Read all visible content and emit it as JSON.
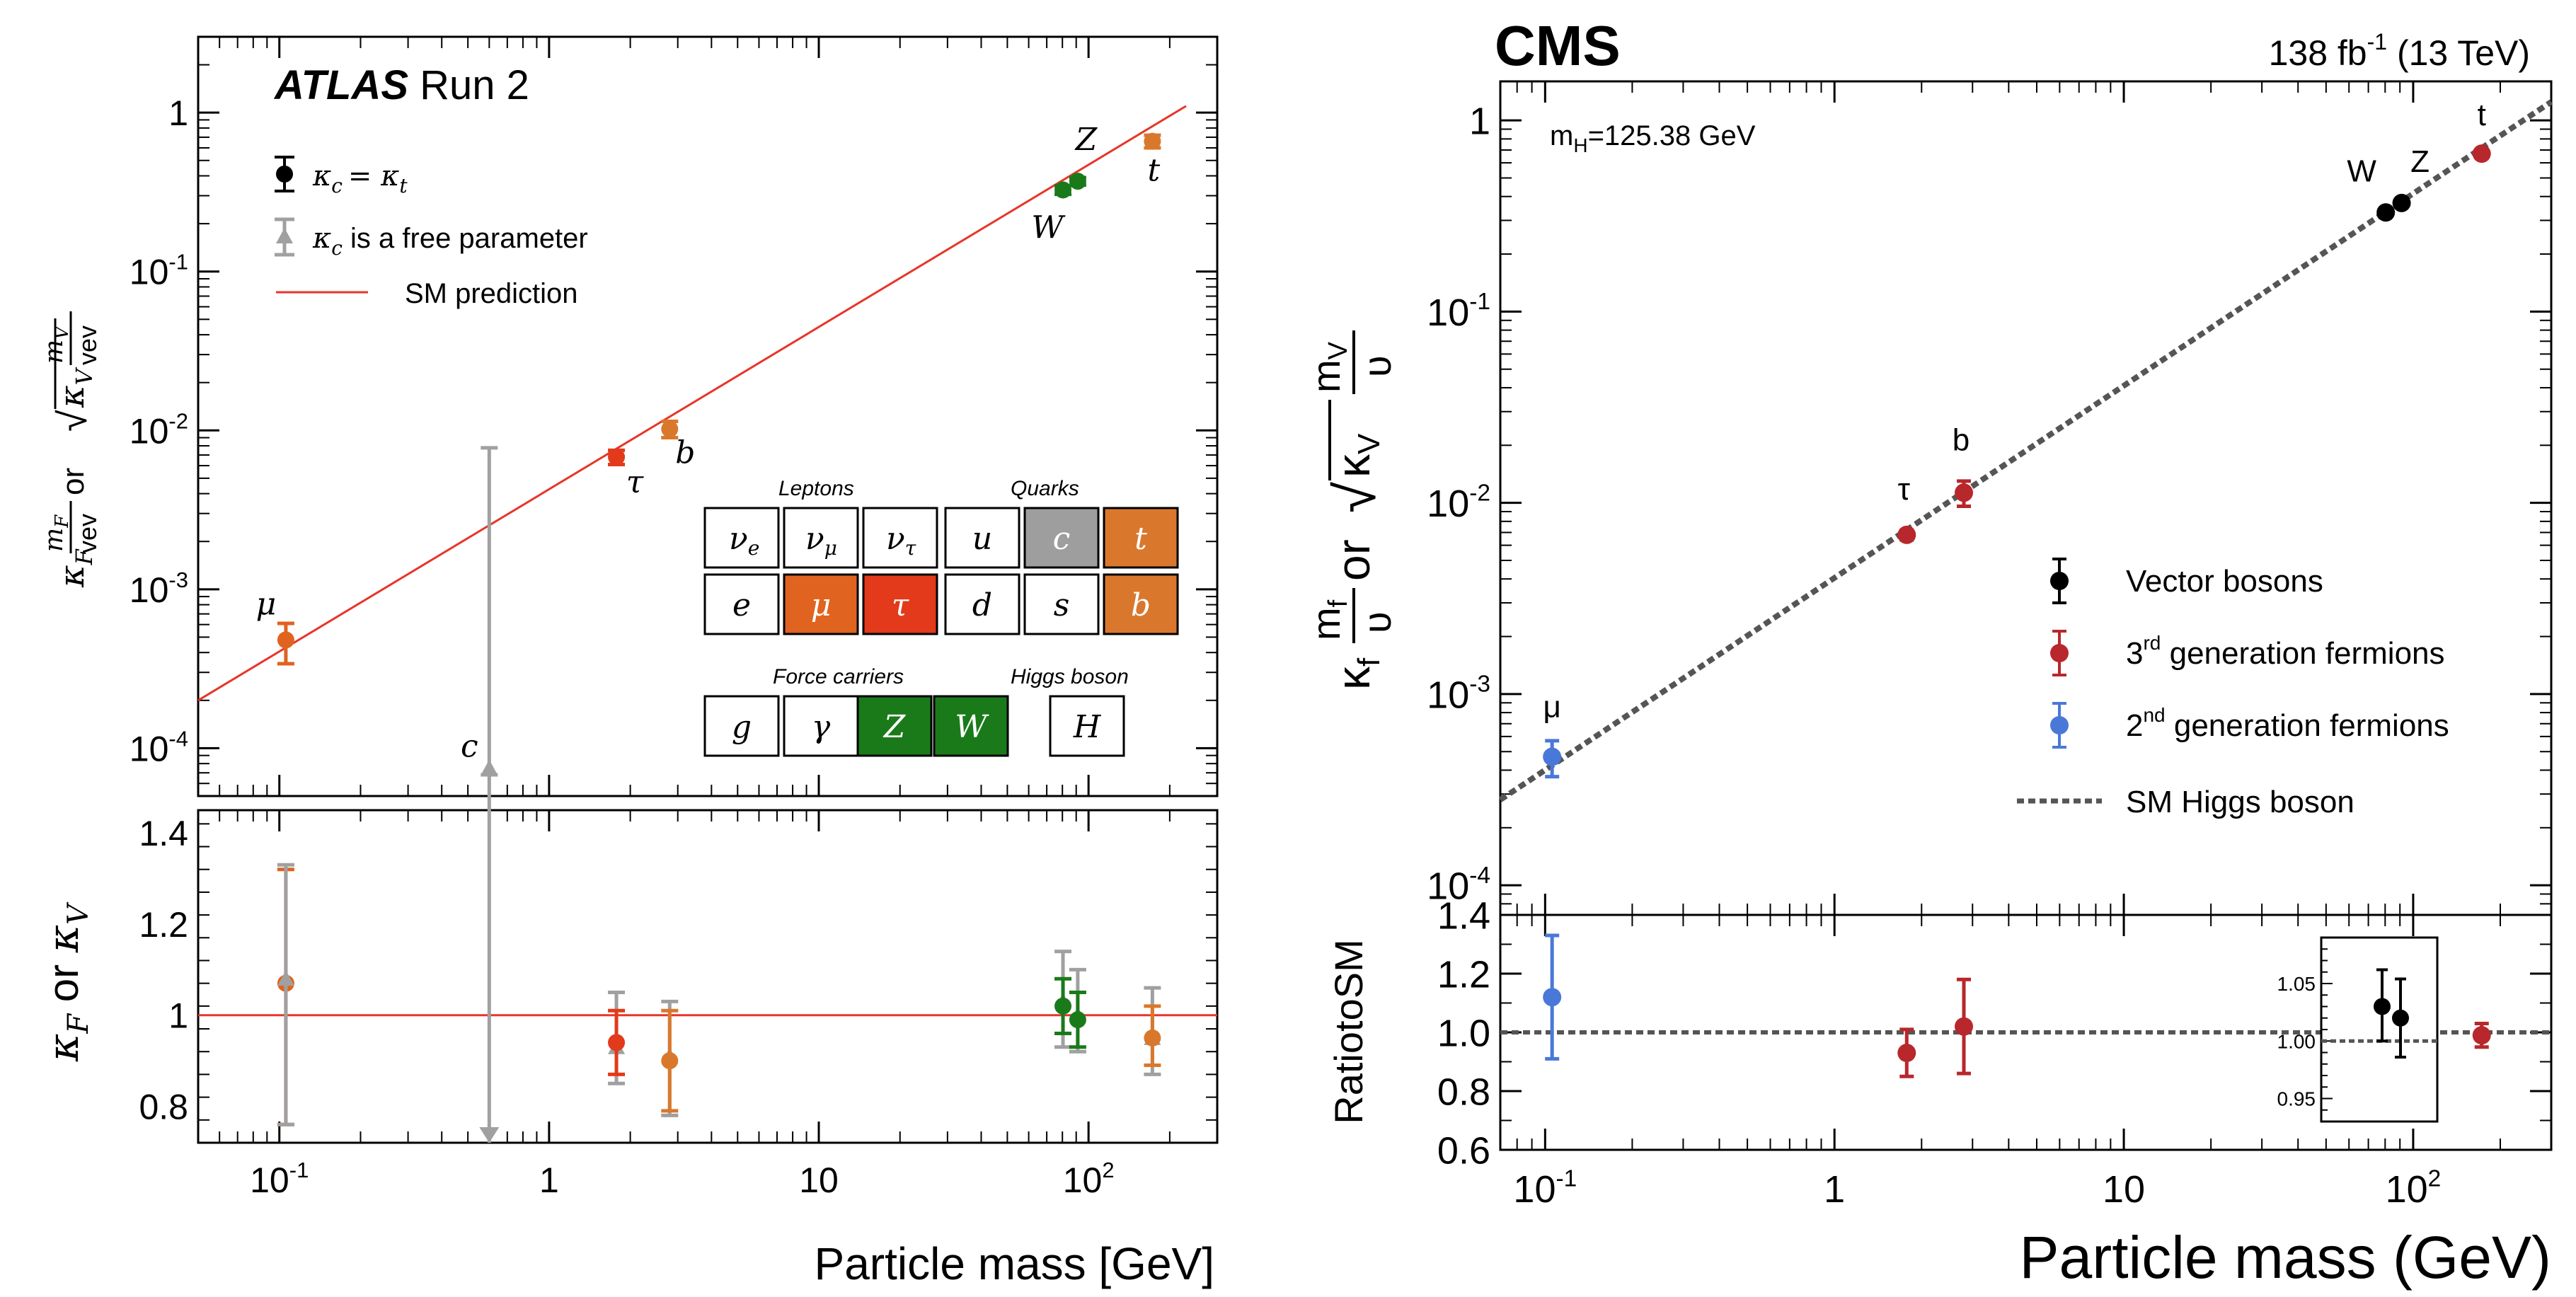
{
  "colors": {
    "atlas_red": "#e8352a",
    "lepton_orange": "#e0631f",
    "tau_red": "#e23a1a",
    "quark_brown": "#d9782d",
    "gauge_green": "#1a7a1a",
    "free_gray": "#a0a0a0",
    "cms_vector": "#000000",
    "cms_third": "#b8272c",
    "cms_second": "#4a78d8",
    "cms_line": "#555555"
  },
  "atlas": {
    "title_bold": "ATLAS",
    "title_rest": " Run 2",
    "ylabel_left": "κ",
    "ylabel_sub": "F",
    "ylabel_num": "m",
    "ylabel_numsub": "F",
    "ylabel_den": "vev",
    "ylabel_or": " or ",
    "ylabel_kv": "κ",
    "ylabel_kvsub": "V",
    "ylabel_mv": "m",
    "ylabel_mvsub": "V",
    "ratio_ylabel_a": "κ",
    "ratio_ylabel_a_sub": "F",
    "ratio_ylabel_or": " or ",
    "ratio_ylabel_b": "κ",
    "ratio_ylabel_b_sub": "V",
    "xlabel": "Particle mass [GeV]",
    "legend": {
      "kc_kt": "κ",
      "kc_kt_rest": "= κ",
      "kc_sub_c": "c",
      "kc_sub_t": "t",
      "free": "κ",
      "free_sub": "c",
      "free_rest": " is a free parameter",
      "sm": "SM prediction"
    },
    "table": {
      "leptons_title": "Leptons",
      "quarks_title": "Quarks",
      "force_title": "Force carriers",
      "higgs_title": "Higgs boson",
      "leptons_row1": [
        "ν",
        "ν",
        "ν"
      ],
      "leptons_row1_sub": [
        "e",
        "μ",
        "τ"
      ],
      "leptons_row2": [
        "e",
        "μ",
        "τ"
      ],
      "quarks_row1": [
        "u",
        "c",
        "t"
      ],
      "quarks_row2": [
        "d",
        "s",
        "b"
      ],
      "force": [
        "g",
        "γ",
        "Z",
        "W"
      ],
      "higgs": "H"
    }
  },
  "cms": {
    "title": "CMS",
    "lumi": "138 fb",
    "lumi_sup": "-1",
    "lumi_rest": " (13 TeV)",
    "mass_label": "m",
    "mass_sub": "H",
    "mass_rest": "=125.38 GeV",
    "ylabel_kappa": "κ",
    "ylabel_f": "f",
    "ylabel_m": "m",
    "ylabel_mf": "f",
    "ylabel_upsilon": "υ",
    "ylabel_or": "or",
    "ylabel_kv": "κ",
    "ylabel_v": "V",
    "ylabel_mv": "V",
    "ratio_ylabel": "RatiotoSM",
    "xlabel": "Particle mass (GeV)",
    "legend": {
      "vector": "Vector bosons",
      "third_pre": "3",
      "third_sup": "rd",
      "third_rest": " generation fermions",
      "second_pre": "2",
      "second_sup": "nd",
      "second_rest": " generation fermions",
      "sm": "SM Higgs boson"
    }
  },
  "chart_data": [
    {
      "type": "scatter",
      "title": "ATLAS Run 2",
      "xlabel": "Particle mass [GeV]",
      "ylabel": "κF mF/vev or sqrt(κV) mV/vev",
      "x_scale": "log",
      "xlim": [
        0.05,
        300
      ],
      "y_scale": "log",
      "ylim": [
        5e-05,
        3
      ],
      "x_tick_labels": [
        "10^-1",
        "1",
        "10",
        "10^2"
      ],
      "y_tick_labels": [
        "10^-4",
        "10^-3",
        "10^-2",
        "10^-1",
        "1"
      ],
      "series": [
        {
          "name": "κc = κt",
          "points": [
            {
              "label": "μ",
              "mass": 0.1057,
              "value": 0.00048,
              "err_lo": 0.00014,
              "err_hi": 0.00013,
              "color": "#e0631f"
            },
            {
              "label": "τ",
              "mass": 1.777,
              "value": 0.0068,
              "err_lo": 0.0007,
              "err_hi": 0.0007,
              "color": "#e23a1a"
            },
            {
              "label": "b",
              "mass": 2.8,
              "value": 0.0102,
              "err_lo": 0.0012,
              "err_hi": 0.0012,
              "color": "#d9782d"
            },
            {
              "label": "W",
              "mass": 80.4,
              "value": 0.326,
              "err_lo": 0.02,
              "err_hi": 0.02,
              "color": "#1a7a1a"
            },
            {
              "label": "Z",
              "mass": 91.2,
              "value": 0.37,
              "err_lo": 0.02,
              "err_hi": 0.02,
              "color": "#1a7a1a"
            },
            {
              "label": "t",
              "mass": 172.5,
              "value": 0.66,
              "err_lo": 0.06,
              "err_hi": 0.06,
              "color": "#d9782d"
            }
          ]
        },
        {
          "name": "κc is a free parameter",
          "points": [
            {
              "label": "c",
              "mass": 0.6,
              "value": 7.5e-05,
              "err_lo": 7e-06,
              "err_hi": 0.0077,
              "color": "#a0a0a0"
            }
          ]
        }
      ],
      "sm_line": {
        "name": "SM prediction",
        "from": [
          0.05,
          0.0002
        ],
        "to": [
          230,
          1.1
        ]
      },
      "ratio": {
        "ylabel": "κF or κV",
        "ylim": [
          0.72,
          1.45
        ],
        "y_tick_labels": [
          "0.8",
          "1",
          "1.2",
          "1.4"
        ],
        "points": [
          {
            "label": "μ",
            "mass": 0.1057,
            "value": 1.07,
            "lo": 0.76,
            "hi": 1.32,
            "color": "#e0631f"
          },
          {
            "label": "μ-free",
            "mass": 0.1057,
            "value": 1.08,
            "lo": 0.76,
            "hi": 1.33,
            "color": "#a0a0a0"
          },
          {
            "label": "c",
            "mass": 0.6,
            "value": 0.72,
            "lo": 0.72,
            "hi": 1.45,
            "color": "#a0a0a0"
          },
          {
            "label": "τ-free",
            "mass": 1.777,
            "value": 0.93,
            "lo": 0.85,
            "hi": 1.05,
            "color": "#a0a0a0"
          },
          {
            "label": "τ",
            "mass": 1.777,
            "value": 0.94,
            "lo": 0.87,
            "hi": 1.01,
            "color": "#e23a1a"
          },
          {
            "label": "b-free",
            "mass": 2.8,
            "value": 0.91,
            "lo": 0.78,
            "hi": 1.03,
            "color": "#a0a0a0"
          },
          {
            "label": "b",
            "mass": 2.8,
            "value": 0.9,
            "lo": 0.79,
            "hi": 1.01,
            "color": "#d9782d"
          },
          {
            "label": "W-free",
            "mass": 80.4,
            "value": 1.03,
            "lo": 0.93,
            "hi": 1.14,
            "color": "#a0a0a0"
          },
          {
            "label": "W",
            "mass": 80.4,
            "value": 1.02,
            "lo": 0.96,
            "hi": 1.08,
            "color": "#1a7a1a"
          },
          {
            "label": "Z-free",
            "mass": 91.2,
            "value": 1.0,
            "lo": 0.92,
            "hi": 1.1,
            "color": "#a0a0a0"
          },
          {
            "label": "Z",
            "mass": 91.2,
            "value": 0.99,
            "lo": 0.93,
            "hi": 1.05,
            "color": "#1a7a1a"
          },
          {
            "label": "t-free",
            "mass": 172.5,
            "value": 0.95,
            "lo": 0.87,
            "hi": 1.06,
            "color": "#a0a0a0"
          },
          {
            "label": "t",
            "mass": 172.5,
            "value": 0.95,
            "lo": 0.89,
            "hi": 1.02,
            "color": "#d9782d"
          }
        ]
      }
    },
    {
      "type": "scatter",
      "title": "CMS",
      "xlabel": "Particle mass (GeV)",
      "ylabel": "κf mf/υ or sqrt(κV) mV/υ",
      "x_scale": "log",
      "xlim": [
        0.07,
        300
      ],
      "y_scale": "log",
      "ylim": [
        7e-05,
        1.6
      ],
      "x_tick_labels": [
        "10^-1",
        "1",
        "10",
        "10^2"
      ],
      "y_tick_labels": [
        "10^-4",
        "10^-3",
        "10^-2",
        "10^-1",
        "1"
      ],
      "series": [
        {
          "name": "Vector bosons",
          "points": [
            {
              "label": "W",
              "mass": 80.4,
              "value": 0.33,
              "err_lo": 0.015,
              "err_hi": 0.015,
              "color": "#000000"
            },
            {
              "label": "Z",
              "mass": 91.2,
              "value": 0.37,
              "err_lo": 0.015,
              "err_hi": 0.015,
              "color": "#000000"
            }
          ]
        },
        {
          "name": "3rd generation fermions",
          "points": [
            {
              "label": "τ",
              "mass": 1.777,
              "value": 0.0068,
              "err_lo": 0.0004,
              "err_hi": 0.0004,
              "color": "#b8272c"
            },
            {
              "label": "b",
              "mass": 2.8,
              "value": 0.0113,
              "err_lo": 0.0017,
              "err_hi": 0.0017,
              "color": "#b8272c"
            },
            {
              "label": "t",
              "mass": 172.5,
              "value": 0.67,
              "err_lo": 0.02,
              "err_hi": 0.02,
              "color": "#b8272c"
            }
          ]
        },
        {
          "name": "2nd generation fermions",
          "points": [
            {
              "label": "μ",
              "mass": 0.1057,
              "value": 0.00047,
              "err_lo": 0.0001,
              "err_hi": 0.0001,
              "color": "#4a78d8"
            }
          ]
        }
      ],
      "sm_line": {
        "name": "SM Higgs boson",
        "from": [
          0.07,
          0.00028
        ],
        "to": [
          300,
          1.25
        ]
      },
      "ratio": {
        "ylabel": "RatiotoSM",
        "ylim": [
          0.6,
          1.4
        ],
        "y_tick_labels": [
          "0.6",
          "0.8",
          "1.0",
          "1.2",
          "1.4"
        ],
        "points": [
          {
            "label": "μ",
            "mass": 0.1057,
            "value": 1.12,
            "lo": 0.91,
            "hi": 1.33,
            "color": "#4a78d8"
          },
          {
            "label": "τ",
            "mass": 1.777,
            "value": 0.93,
            "lo": 0.85,
            "hi": 1.01,
            "color": "#b8272c"
          },
          {
            "label": "b",
            "mass": 2.8,
            "value": 1.02,
            "lo": 0.86,
            "hi": 1.18,
            "color": "#b8272c"
          },
          {
            "label": "t",
            "mass": 172.5,
            "value": 0.99,
            "lo": 0.95,
            "hi": 1.03,
            "color": "#b8272c"
          }
        ],
        "inset": {
          "ylim": [
            0.93,
            1.09
          ],
          "y_tick_labels": [
            "0.95",
            "1.00",
            "1.05"
          ],
          "points": [
            {
              "label": "W",
              "value": 1.03,
              "lo": 1.0,
              "hi": 1.062,
              "color": "#000000"
            },
            {
              "label": "Z",
              "value": 1.02,
              "lo": 0.986,
              "hi": 1.054,
              "color": "#000000"
            }
          ]
        }
      }
    }
  ]
}
